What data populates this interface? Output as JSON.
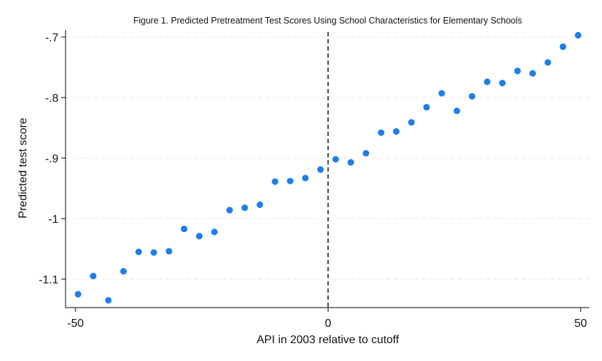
{
  "chart_data": {
    "type": "scatter",
    "title": "Figure 1. Predicted Pretreatment Test Scores Using School Characteristics for Elementary Schools",
    "xlabel": "API in 2003 relative to cutoff",
    "ylabel": "Predicted test score",
    "xlim": [
      -50,
      50
    ],
    "ylim": [
      -1.15,
      -0.69
    ],
    "x_ticks": [
      -50,
      0,
      50
    ],
    "x_tick_labels": [
      "-50",
      "0",
      "50"
    ],
    "y_ticks": [
      -0.7,
      -0.8,
      -0.9,
      -1.0,
      -1.1
    ],
    "y_tick_labels": [
      "-.7",
      "-.8",
      "-.9",
      "-1",
      "-1.1"
    ],
    "grid": true,
    "reference_line": {
      "x": 0,
      "style": "dashed",
      "color": "#000000"
    },
    "point_color": "#1e7fe8",
    "series": [
      {
        "x": [
          -49.5,
          -46.5,
          -43.5,
          -40.5,
          -37.5,
          -34.5,
          -31.5,
          -28.5,
          -25.5,
          -22.5,
          -19.5,
          -16.5,
          -13.5,
          -10.5,
          -7.5,
          -4.5,
          -1.5,
          1.5,
          4.5,
          7.5,
          10.5,
          13.5,
          16.5,
          19.5,
          22.5,
          25.5,
          28.5,
          31.5,
          34.5,
          37.5,
          40.5,
          43.5,
          46.5,
          49.5
        ],
        "y": [
          -1.125,
          -1.095,
          -1.135,
          -1.087,
          -1.055,
          -1.056,
          -1.054,
          -1.017,
          -1.029,
          -1.022,
          -0.986,
          -0.982,
          -0.977,
          -0.939,
          -0.938,
          -0.933,
          -0.919,
          -0.902,
          -0.907,
          -0.892,
          -0.858,
          -0.856,
          -0.841,
          -0.816,
          -0.793,
          -0.822,
          -0.798,
          -0.774,
          -0.776,
          -0.756,
          -0.76,
          -0.742,
          -0.716,
          -0.697
        ]
      }
    ]
  }
}
